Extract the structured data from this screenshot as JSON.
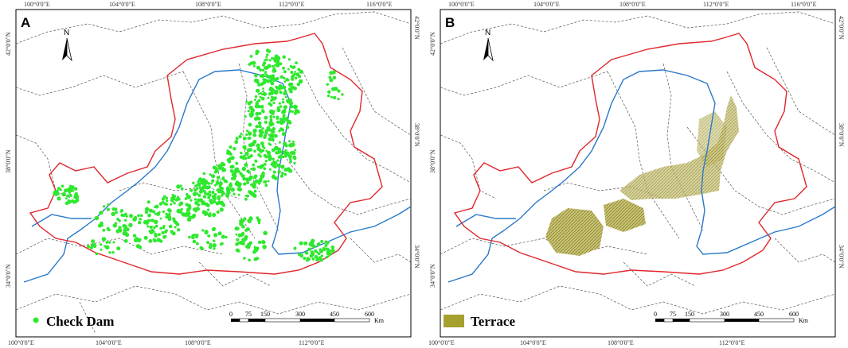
{
  "panels": [
    {
      "label": "A",
      "top_ticks": [
        "100°0'0\"E",
        "104°0'0\"E",
        "108°0'0\"E",
        "112°0'0\"E",
        "116°0'0\"E"
      ],
      "bottom_ticks": [
        "100°0'0\"E",
        "104°0'0\"E",
        "108°0'0\"E",
        "112°0'0\"E"
      ],
      "left_ticks": [
        "42°0'0\"N",
        "38°0'0\"N",
        "34°0'0\"N"
      ],
      "right_ticks": [
        "42°0'0\"N",
        "38°0'0\"N",
        "34°0'0\"N"
      ],
      "north": "N",
      "scale_labels": [
        "0",
        "75",
        "150",
        "300",
        "450",
        "600"
      ],
      "scale_unit": "Km",
      "legend": {
        "label": "Check Dam",
        "color": "#2ee82e"
      }
    },
    {
      "label": "B",
      "top_ticks": [
        "100°0'0\"E",
        "104°0'0\"E",
        "108°0'0\"E",
        "112°0'0\"E",
        "116°0'0\"E"
      ],
      "bottom_ticks": [
        "100°0'0\"E",
        "104°0'0\"E",
        "108°0'0\"E",
        "112°0'0\"E"
      ],
      "left_ticks": [
        "42°0'0\"N",
        "38°0'0\"N",
        "34°0'0\"N"
      ],
      "right_ticks": [
        "42°0'0\"N",
        "38°0'0\"N",
        "34°0'0\"N"
      ],
      "north": "N",
      "scale_labels": [
        "0",
        "75",
        "150",
        "300",
        "450",
        "600"
      ],
      "scale_unit": "Km",
      "legend": {
        "label": "Terrace",
        "color": "#a6a02e"
      }
    }
  ],
  "colors": {
    "boundary": "#e0262b",
    "river": "#2a78c8",
    "province_border": "#555555",
    "check_dam": "#2ee82e",
    "terrace": "#a6a02e"
  }
}
